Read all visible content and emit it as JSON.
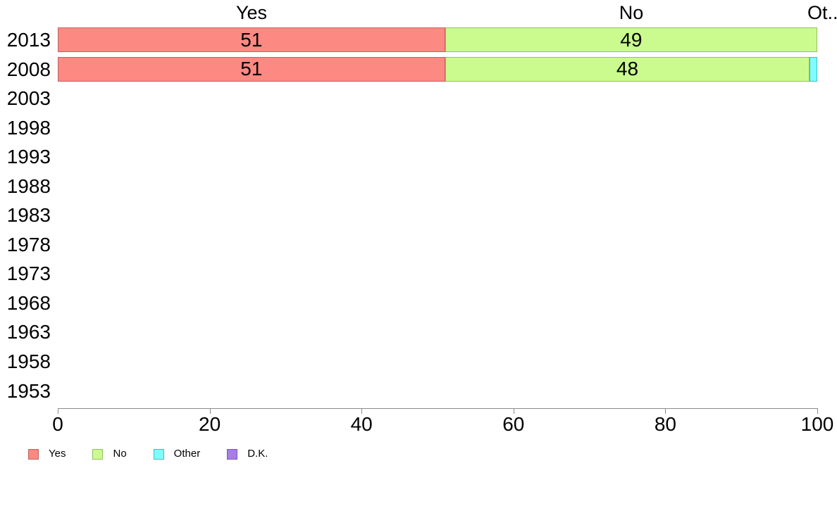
{
  "chart_data": {
    "type": "bar",
    "orientation": "horizontal",
    "stacked": true,
    "title": "",
    "xlabel": "",
    "ylabel": "",
    "xlim": [
      0,
      100
    ],
    "xticks": [
      0,
      20,
      40,
      60,
      80,
      100
    ],
    "grid": false,
    "legend_position": "bottom-left",
    "value_label_min": 3,
    "column_headers": [
      "Yes",
      "No",
      "Ot.."
    ],
    "categories": [
      "2013",
      "2008",
      "2003",
      "1998",
      "1993",
      "1988",
      "1983",
      "1978",
      "1973",
      "1968",
      "1963",
      "1958",
      "1953"
    ],
    "series": [
      {
        "name": "Yes",
        "color": "#fc8982",
        "border_color": "#bd6460",
        "values": [
          51,
          51,
          null,
          null,
          null,
          null,
          null,
          null,
          null,
          null,
          null,
          null,
          null
        ]
      },
      {
        "name": "No",
        "color": "#cbfb8f",
        "border_color": "#93bf63",
        "values": [
          49,
          48,
          null,
          null,
          null,
          null,
          null,
          null,
          null,
          null,
          null,
          null,
          null
        ]
      },
      {
        "name": "Other",
        "color": "#80feff",
        "border_color": "#46b8c4",
        "values": [
          null,
          1,
          null,
          null,
          null,
          null,
          null,
          null,
          null,
          null,
          null,
          null,
          null
        ]
      },
      {
        "name": "D.K.",
        "color": "#a87de8",
        "border_color": "#7b55c0",
        "values": [
          null,
          null,
          null,
          null,
          null,
          null,
          null,
          null,
          null,
          null,
          null,
          null,
          null
        ]
      }
    ],
    "colors": {
      "axis": "#8a8a8a",
      "text": "#000000",
      "background": "#ffffff"
    }
  }
}
